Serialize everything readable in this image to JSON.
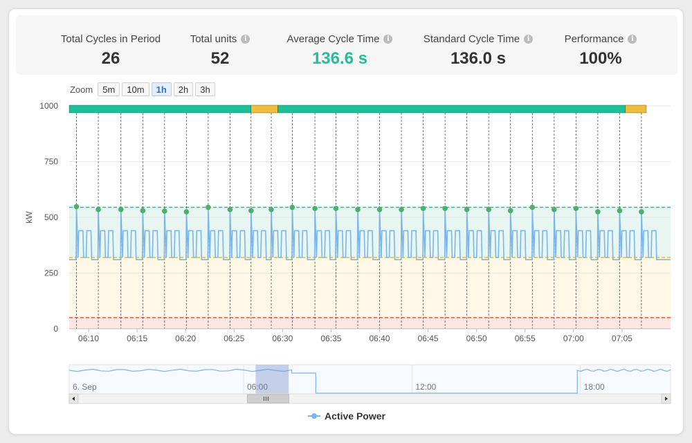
{
  "kpis": [
    {
      "label": "Total Cycles in Period",
      "value": "26",
      "info": false,
      "color": "#333333"
    },
    {
      "label": "Total units",
      "value": "52",
      "info": true,
      "color": "#333333"
    },
    {
      "label": "Average Cycle Time",
      "value": "136.6 s",
      "info": true,
      "color": "#1fbf9a"
    },
    {
      "label": "Standard Cycle Time",
      "value": "136.0 s",
      "info": true,
      "color": "#333333"
    },
    {
      "label": "Performance",
      "value": "100%",
      "info": true,
      "color": "#333333"
    }
  ],
  "zoom": {
    "label": "Zoom",
    "buttons": [
      "5m",
      "10m",
      "1h",
      "2h",
      "3h"
    ],
    "active": "1h"
  },
  "legend": {
    "label": "Active Power",
    "color": "#7cb5ec"
  },
  "chart_data": {
    "type": "line",
    "ylabel": "kW",
    "ylim": [
      0,
      1000
    ],
    "yticks": [
      0,
      250,
      500,
      750,
      1000
    ],
    "xlim": [
      "06:08",
      "07:10"
    ],
    "xticks": [
      "06:10",
      "06:15",
      "06:20",
      "06:25",
      "06:30",
      "06:35",
      "06:40",
      "06:45",
      "06:50",
      "06:55",
      "07:00",
      "07:05"
    ],
    "bands": [
      {
        "from": 545,
        "to": 1000,
        "color": "#ffffff"
      },
      {
        "from": 320,
        "to": 545,
        "color": "#e8f6f1"
      },
      {
        "from": 50,
        "to": 320,
        "color": "#fff8e6"
      },
      {
        "from": 0,
        "to": 50,
        "color": "#fde7e3"
      }
    ],
    "thresholds": [
      {
        "value": 545,
        "color": "#1fbf9a"
      },
      {
        "value": 320,
        "color": "#e8b830"
      },
      {
        "value": 50,
        "color": "#e8593a"
      }
    ],
    "status_bar": {
      "colors": {
        "ok": "#1fbf9a",
        "slow": "#f0be3c"
      },
      "segments": [
        {
          "from": "06:08",
          "to": "06:26:45",
          "status": "ok"
        },
        {
          "from": "06:26:45",
          "to": "06:29:30",
          "status": "slow"
        },
        {
          "from": "06:29:30",
          "to": "07:05:20",
          "status": "ok"
        },
        {
          "from": "07:05:20",
          "to": "07:07:30",
          "status": "slow"
        }
      ]
    },
    "cycle_starts": [
      "06:08:45",
      "06:11:00",
      "06:13:20",
      "06:15:35",
      "06:17:50",
      "06:20:05",
      "06:22:20",
      "06:24:35",
      "06:26:45",
      "06:28:50",
      "06:31:00",
      "06:33:20",
      "06:35:30",
      "06:37:45",
      "06:40:00",
      "06:42:15",
      "06:44:30",
      "06:46:45",
      "06:49:00",
      "06:51:15",
      "06:53:30",
      "06:55:45",
      "06:58:00",
      "07:00:15",
      "07:02:30",
      "07:04:45",
      "07:07:00"
    ],
    "cycle_peaks": [
      548,
      535,
      535,
      530,
      528,
      525,
      545,
      535,
      530,
      535,
      545,
      540,
      540,
      535,
      535,
      535,
      540,
      540,
      535,
      535,
      530,
      545,
      535,
      540,
      525,
      530,
      525
    ],
    "series": [
      {
        "name": "Active Power",
        "color": "#7cb5ec",
        "pattern": {
          "base": 310,
          "peak": 545,
          "high": 440,
          "low": 320
        },
        "values": []
      }
    ],
    "navigator": {
      "xticks": [
        "6. Sep",
        "06:00",
        "12:00",
        "18:00"
      ],
      "levels": [
        {
          "from": 0,
          "to": 0.37,
          "value": "high"
        },
        {
          "from": 0.37,
          "to": 0.41,
          "value": "mid"
        },
        {
          "from": 0.41,
          "to": 0.845,
          "value": "low"
        },
        {
          "from": 0.845,
          "to": 1,
          "value": "high"
        }
      ],
      "selection": [
        0.31,
        0.365
      ]
    }
  }
}
